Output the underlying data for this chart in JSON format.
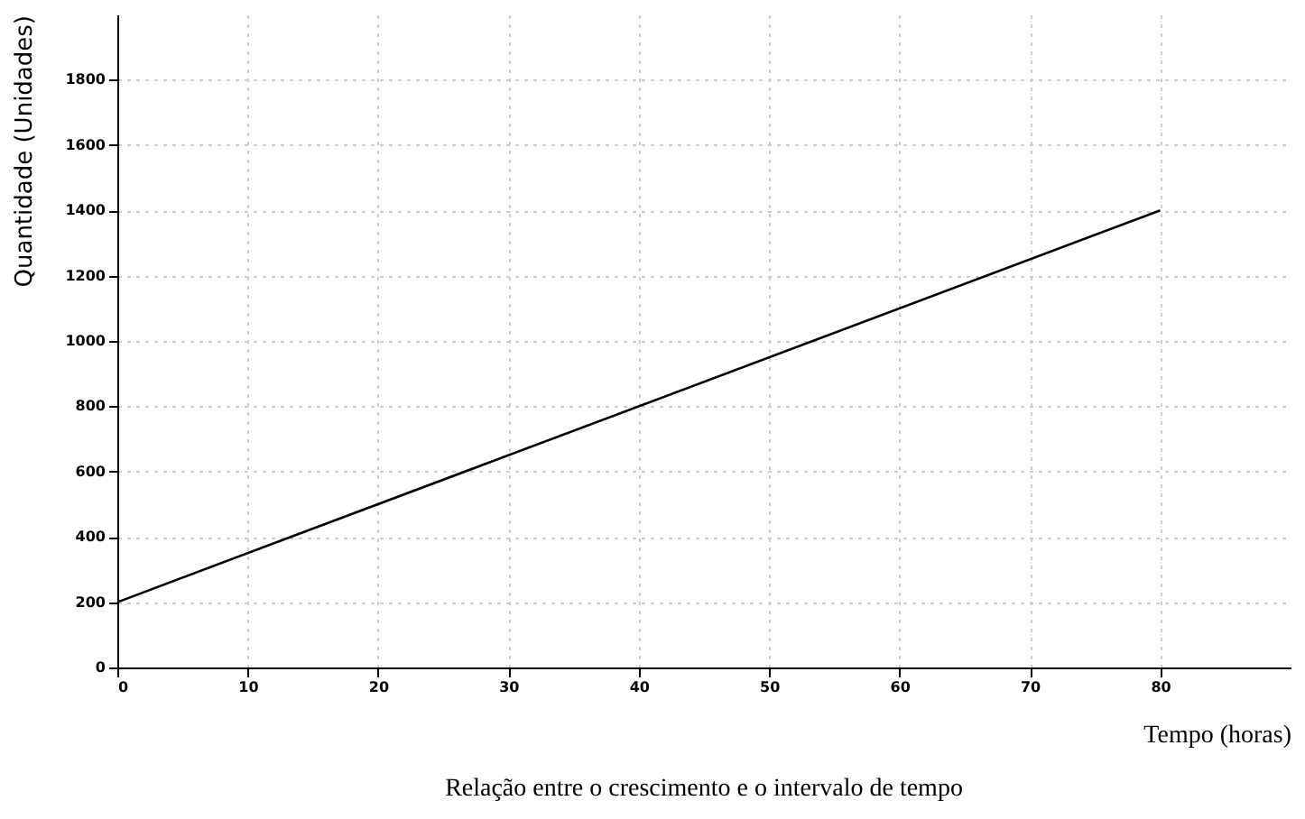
{
  "chart_data": {
    "type": "line",
    "title": "Relação entre o crescimento e o intervalo de tempo",
    "xlabel": "Tempo (horas)",
    "ylabel": "Quantidade (Unidades)",
    "x": [
      0,
      80
    ],
    "series": [
      {
        "color": "#000000",
        "values": [
          200,
          1400
        ]
      }
    ],
    "xlim": [
      0,
      90
    ],
    "ylim": [
      0,
      2000
    ],
    "xticks": [
      0,
      10,
      20,
      30,
      40,
      50,
      60,
      70,
      80
    ],
    "yticks": [
      0,
      200,
      400,
      600,
      800,
      1000,
      1200,
      1400,
      1600,
      1800
    ],
    "grid": true,
    "marker": "none",
    "line_style": "solid"
  }
}
